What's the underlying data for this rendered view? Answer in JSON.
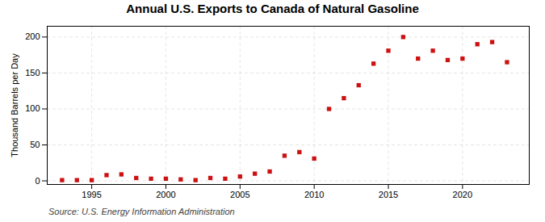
{
  "chart_data": {
    "type": "scatter",
    "title": "Annual U.S. Exports to Canada of Natural Gasoline",
    "ylabel": "Thousand Barrels per Day",
    "annotation": "Source: U.S. Energy Information Administration",
    "x": [
      1993,
      1994,
      1995,
      1996,
      1997,
      1998,
      1999,
      2000,
      2001,
      2002,
      2003,
      2004,
      2005,
      2006,
      2007,
      2008,
      2009,
      2010,
      2011,
      2012,
      2013,
      2014,
      2015,
      2016,
      2017,
      2018,
      2019,
      2020,
      2021,
      2022,
      2023
    ],
    "values": [
      1,
      1,
      1,
      8,
      9,
      4,
      3,
      3,
      2,
      1,
      4,
      3,
      6,
      10,
      13,
      35,
      40,
      31,
      100,
      115,
      133,
      163,
      181,
      200,
      170,
      181,
      168,
      170,
      190,
      193,
      165
    ],
    "color": "#cc1111",
    "marker": "square",
    "xlim": [
      1992.0,
      2024.5
    ],
    "ylim": [
      -5,
      215
    ],
    "xticks": [
      1995,
      2000,
      2005,
      2010,
      2015,
      2020
    ],
    "yticks": [
      0,
      50,
      100,
      150,
      200
    ],
    "grid": true
  }
}
